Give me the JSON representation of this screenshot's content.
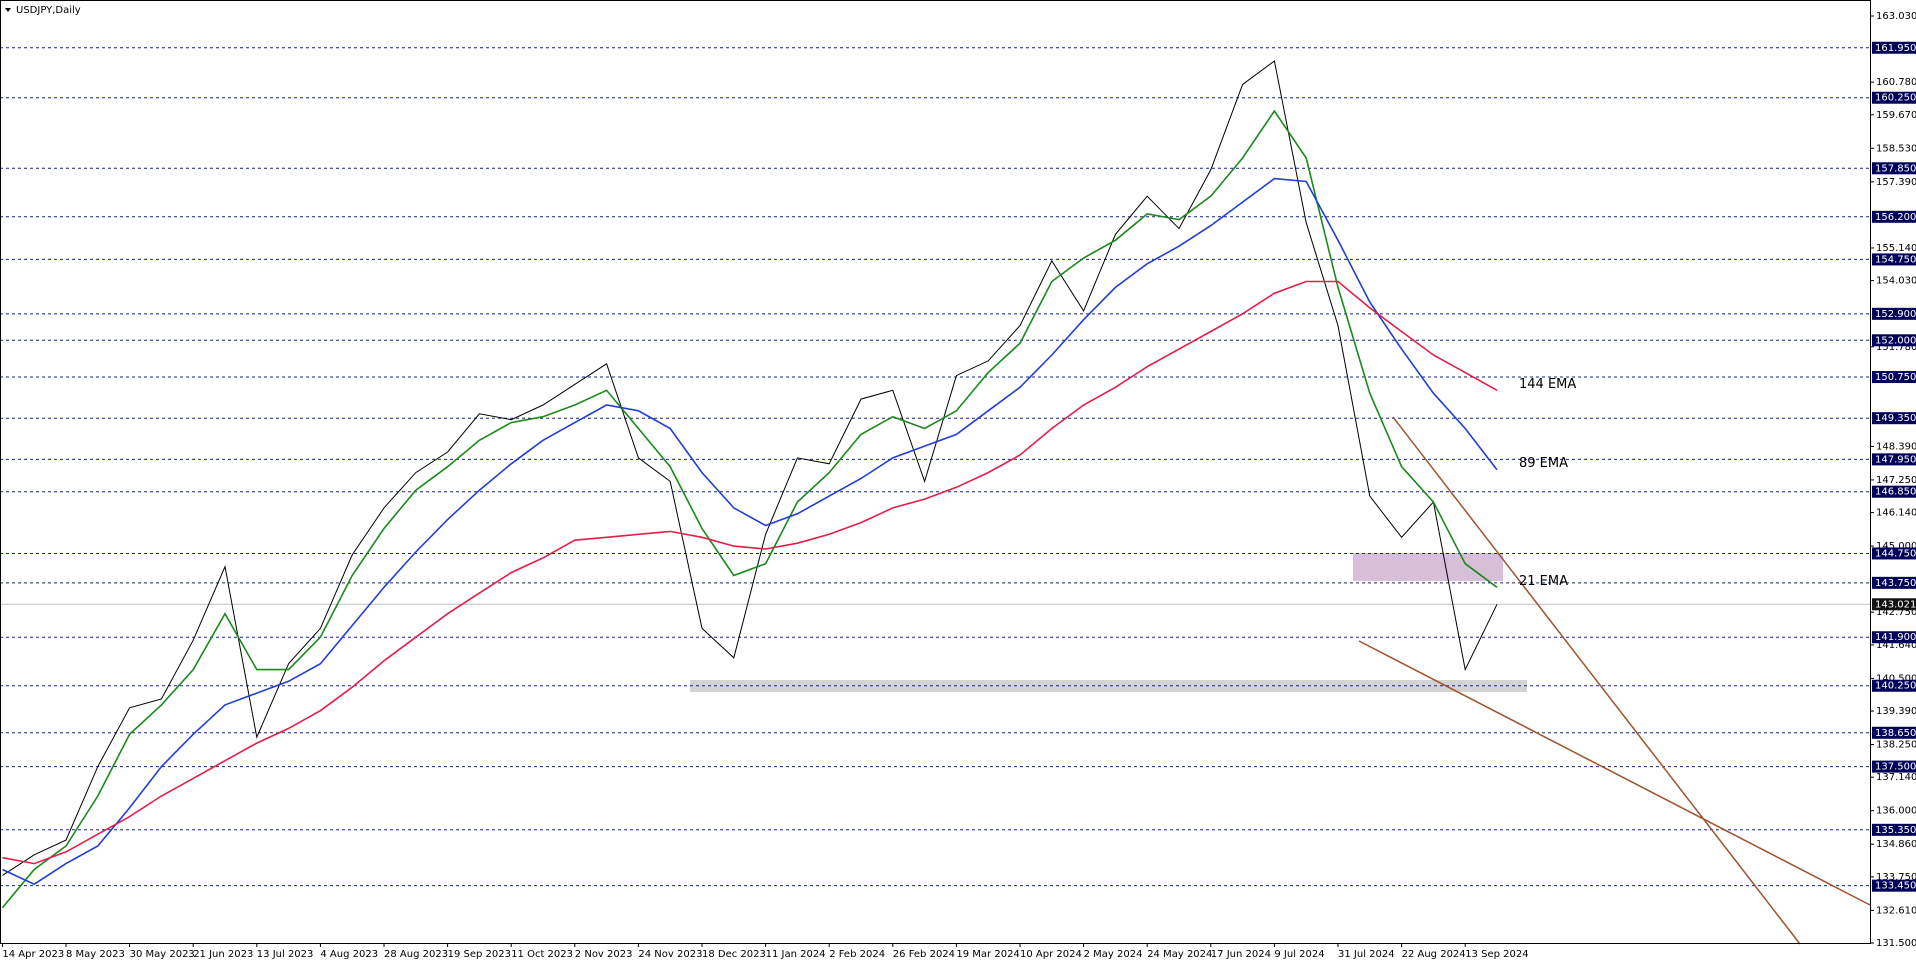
{
  "chart_data": {
    "type": "line",
    "title": "USDJPY,Daily",
    "categories": [
      "14 Apr 2023",
      null,
      "8 May 2023",
      null,
      "30 May 2023",
      null,
      "21 Jun 2023",
      null,
      "13 Jul 2023",
      null,
      "4 Aug 2023",
      null,
      "28 Aug 2023",
      null,
      "19 Sep 2023",
      null,
      "11 Oct 2023",
      null,
      "2 Nov 2023",
      null,
      "24 Nov 2023",
      null,
      "18 Dec 2023",
      null,
      "11 Jan 2024",
      null,
      "2 Feb 2024",
      null,
      "26 Feb 2024",
      null,
      "19 Mar 2024",
      null,
      "10 Apr 2024",
      null,
      "2 May 2024",
      null,
      "24 May 2024",
      null,
      "17 Jun 2024",
      null,
      "9 Jul 2024",
      null,
      "31 Jul 2024",
      null,
      "22 Aug 2024",
      null,
      "13 Sep 2024",
      null
    ],
    "series": [
      {
        "color": "#000000",
        "values": [
          133.8,
          134.5,
          135.0,
          137.5,
          139.5,
          139.8,
          141.8,
          144.3,
          138.5,
          141.0,
          142.2,
          144.7,
          146.3,
          147.5,
          148.2,
          149.5,
          149.3,
          149.8,
          150.5,
          151.2,
          148.0,
          147.2,
          142.2,
          141.2,
          145.4,
          148.0,
          147.8,
          150.0,
          150.3,
          147.2,
          150.8,
          151.3,
          152.5,
          154.7,
          153.0,
          155.6,
          156.9,
          155.8,
          157.8,
          160.7,
          161.5,
          156.0,
          152.5,
          146.7,
          145.3,
          146.5,
          140.8,
          143.02
        ]
      },
      {
        "name": "21 EMA",
        "color": "#1a8a1a",
        "values": [
          132.7,
          134.0,
          134.8,
          136.5,
          138.6,
          139.6,
          140.8,
          142.7,
          140.8,
          140.8,
          141.9,
          144.0,
          145.6,
          146.9,
          147.7,
          148.6,
          149.2,
          149.4,
          149.8,
          150.3,
          149.0,
          147.7,
          145.6,
          144.0,
          144.4,
          146.5,
          147.5,
          148.8,
          149.4,
          149.0,
          149.6,
          150.9,
          151.9,
          154.0,
          154.8,
          155.4,
          156.3,
          156.1,
          156.9,
          158.2,
          159.8,
          158.2,
          153.8,
          150.2,
          147.7,
          146.5,
          144.4,
          143.6
        ]
      },
      {
        "name": "89 EMA",
        "color": "#1f3fd6",
        "values": [
          134.0,
          133.5,
          134.2,
          134.8,
          136.1,
          137.5,
          138.6,
          139.6,
          140.0,
          140.4,
          141.0,
          142.3,
          143.6,
          144.8,
          145.9,
          146.9,
          147.8,
          148.6,
          149.2,
          149.8,
          149.6,
          149.0,
          147.5,
          146.3,
          145.7,
          146.1,
          146.7,
          147.3,
          148.0,
          148.4,
          148.8,
          149.6,
          150.4,
          151.5,
          152.7,
          153.8,
          154.6,
          155.2,
          155.9,
          156.7,
          157.5,
          157.4,
          155.4,
          153.3,
          151.7,
          150.2,
          149.0,
          147.6
        ]
      },
      {
        "name": "144 EMA",
        "color": "#e0204a",
        "values": [
          134.4,
          134.2,
          134.6,
          135.2,
          135.8,
          136.5,
          137.1,
          137.7,
          138.3,
          138.8,
          139.4,
          140.2,
          141.1,
          141.9,
          142.7,
          143.4,
          144.1,
          144.6,
          145.2,
          145.3,
          145.4,
          145.5,
          145.3,
          145.0,
          144.9,
          145.1,
          145.4,
          145.8,
          146.3,
          146.6,
          147.0,
          147.5,
          148.1,
          149.0,
          149.8,
          150.4,
          151.1,
          151.7,
          152.3,
          152.9,
          153.6,
          154.0,
          154.0,
          153.1,
          152.3,
          151.5,
          150.9,
          150.3
        ]
      }
    ],
    "ylim": [
      131.5,
      163.03
    ],
    "yticks": [
      {
        "value": 163.03,
        "label": "163.030"
      },
      {
        "value": 160.78,
        "label": "160.780"
      },
      {
        "value": 159.67,
        "label": "159.670"
      },
      {
        "value": 158.53,
        "label": "158.530"
      },
      {
        "value": 157.39,
        "label": "157.390"
      },
      {
        "value": 155.14,
        "label": "155.140"
      },
      {
        "value": 154.03,
        "label": "154.030"
      },
      {
        "value": 151.78,
        "label": "151.780"
      },
      {
        "value": 148.39,
        "label": "148.390"
      },
      {
        "value": 147.25,
        "label": "147.250"
      },
      {
        "value": 146.14,
        "label": "146.140"
      },
      {
        "value": 145.0,
        "label": "145.000"
      },
      {
        "value": 142.75,
        "label": "142.750"
      },
      {
        "value": 141.64,
        "label": "141.640"
      },
      {
        "value": 140.5,
        "label": "140.500"
      },
      {
        "value": 139.39,
        "label": "139.390"
      },
      {
        "value": 138.25,
        "label": "138.250"
      },
      {
        "value": 137.14,
        "label": "137.140"
      },
      {
        "value": 136.0,
        "label": "136.000"
      },
      {
        "value": 134.86,
        "label": "134.860"
      },
      {
        "value": 133.75,
        "label": "133.750"
      },
      {
        "value": 132.61,
        "label": "132.610"
      },
      {
        "value": 131.5,
        "label": "131.500"
      }
    ],
    "levels": [
      {
        "value": 161.95,
        "label": "161.950"
      },
      {
        "value": 160.25,
        "label": "160.250"
      },
      {
        "value": 157.85,
        "label": "157.850"
      },
      {
        "value": 156.2,
        "label": "156.200"
      },
      {
        "value": 154.75,
        "label": "154.750"
      },
      {
        "value": 152.9,
        "label": "152.900"
      },
      {
        "value": 152.0,
        "label": "152.000"
      },
      {
        "value": 150.75,
        "label": "150.750"
      },
      {
        "value": 149.35,
        "label": "149.350"
      },
      {
        "value": 147.95,
        "label": "147.950"
      },
      {
        "value": 146.85,
        "label": "146.850"
      },
      {
        "value": 144.75,
        "label": "144.750"
      },
      {
        "value": 143.75,
        "label": "143.750"
      },
      {
        "value": 141.9,
        "label": "141.900"
      },
      {
        "value": 140.25,
        "label": "140.250"
      },
      {
        "value": 138.65,
        "label": "138.650"
      },
      {
        "value": 137.5,
        "label": "137.500"
      },
      {
        "value": 135.35,
        "label": "135.350"
      },
      {
        "value": 133.45,
        "label": "133.450"
      }
    ],
    "last_price": {
      "value": 143.021,
      "label": "143.021"
    }
  }
}
